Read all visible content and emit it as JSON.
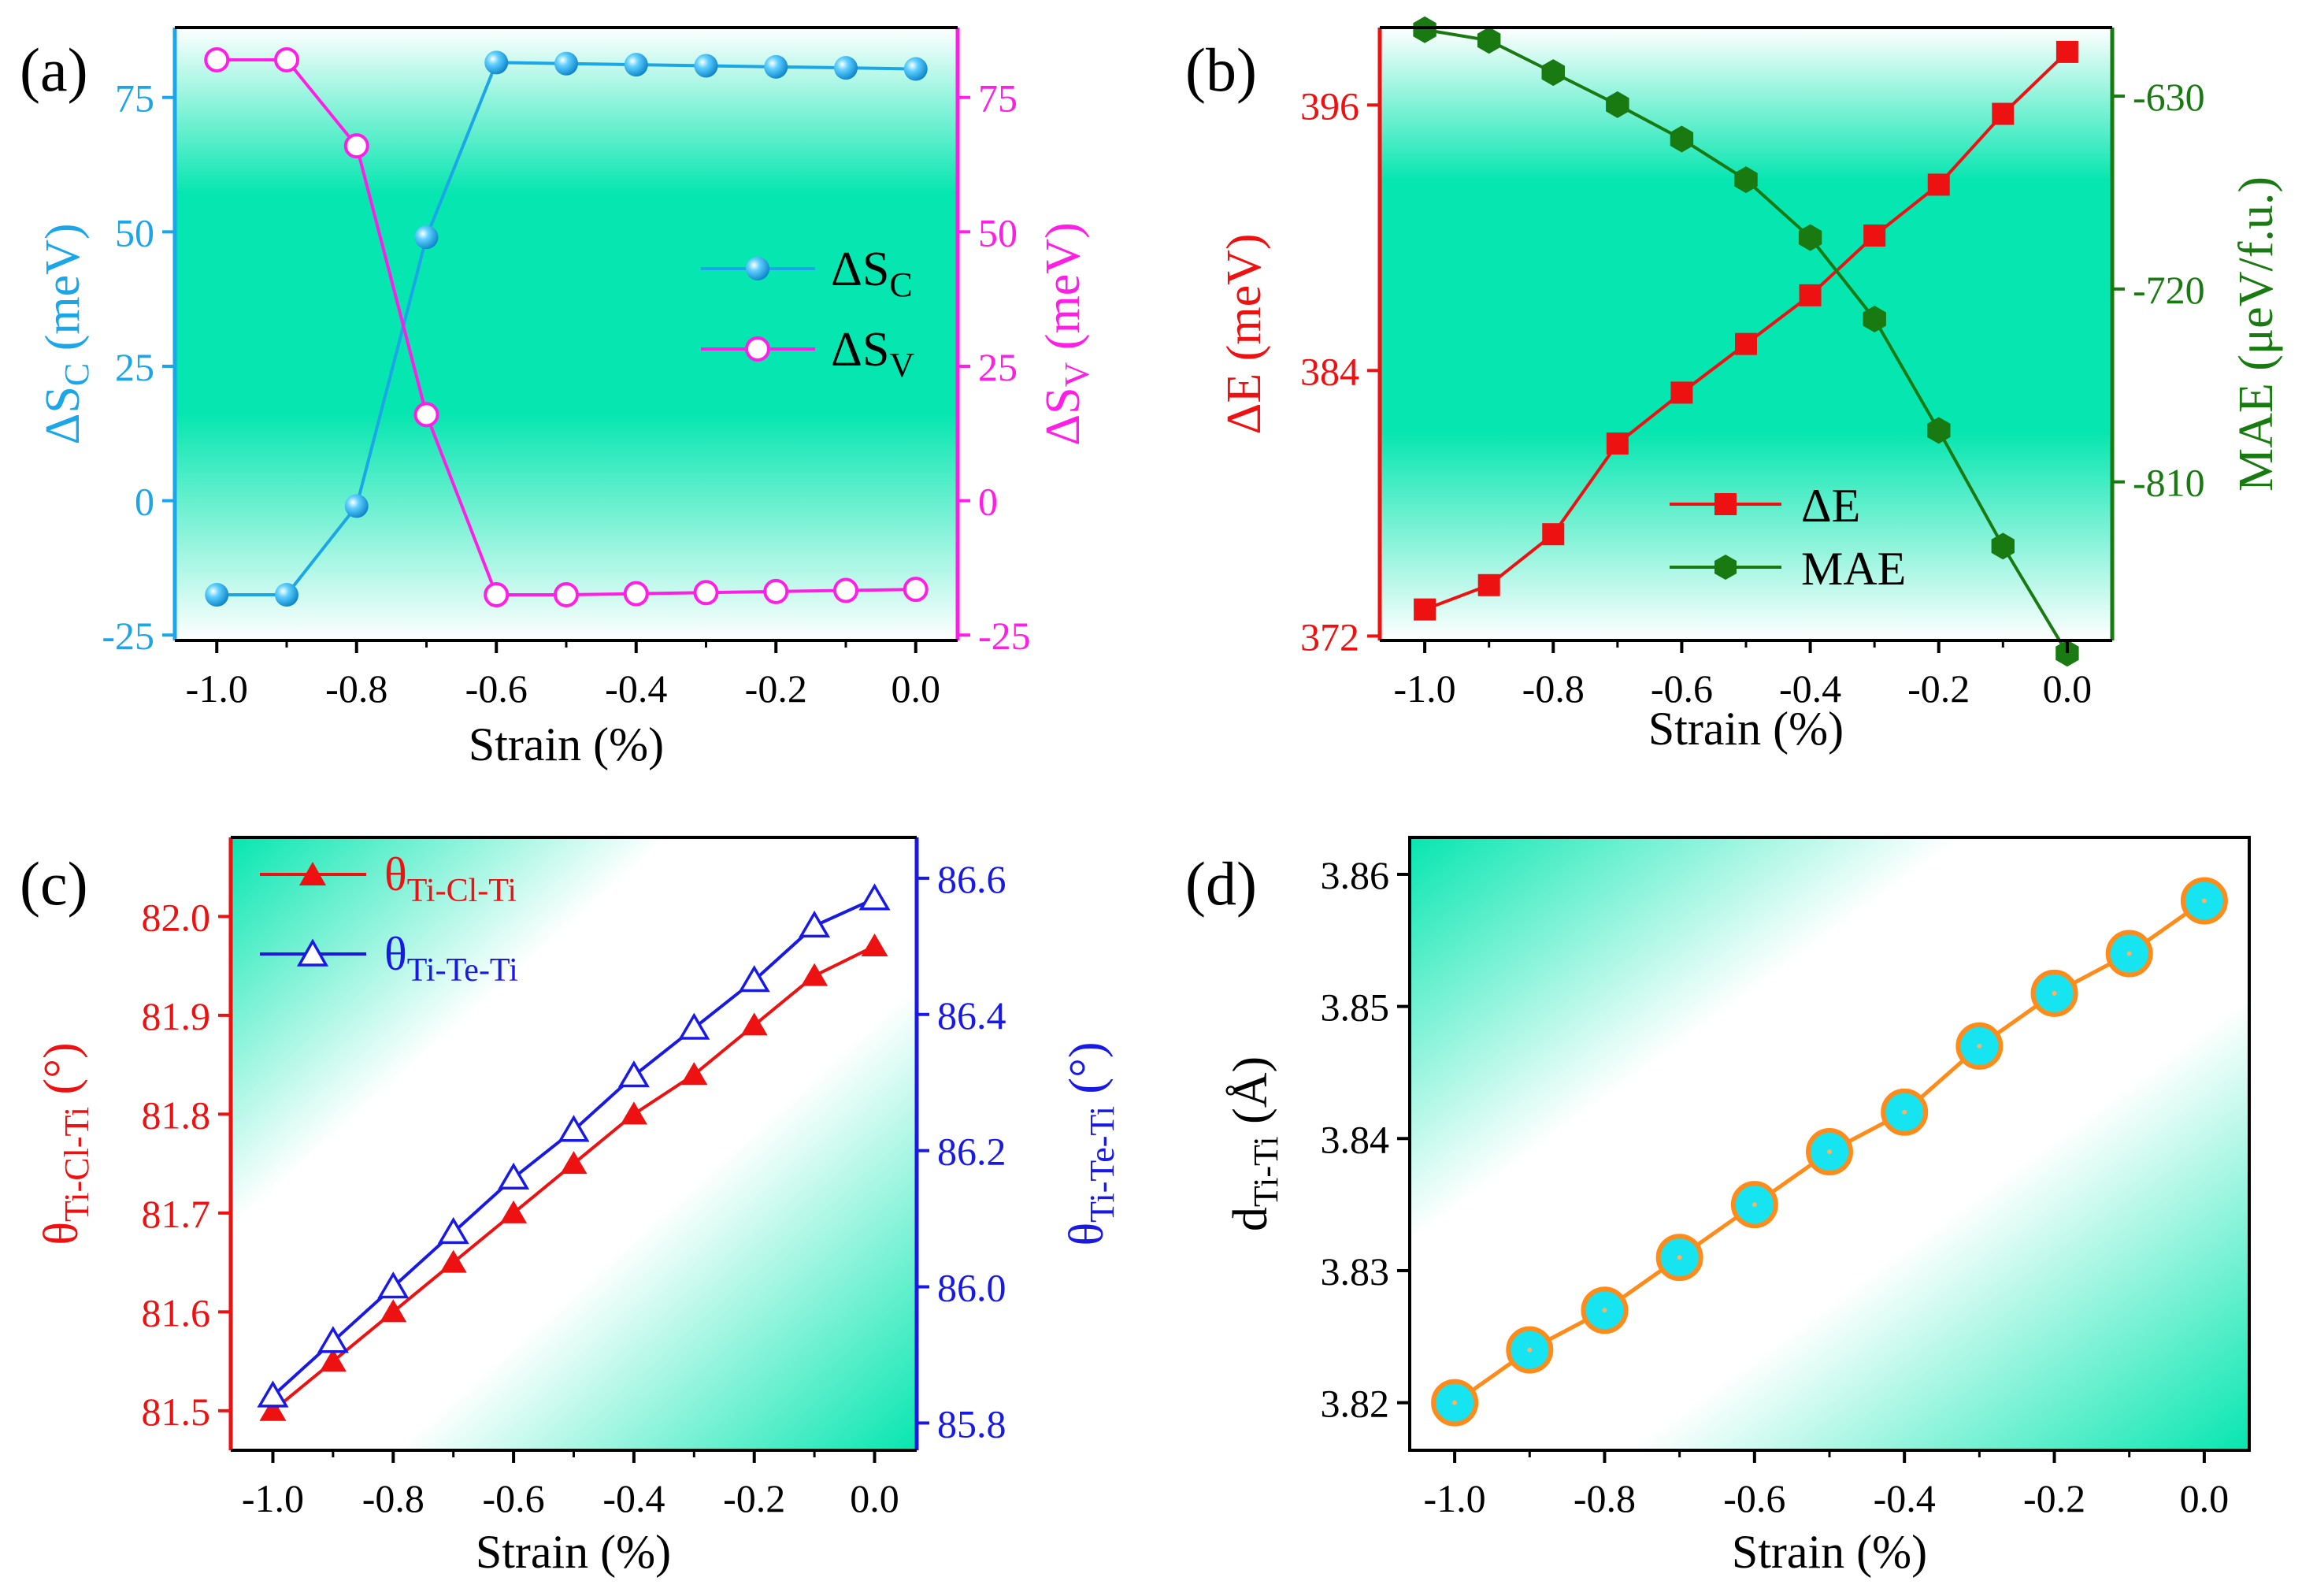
{
  "figure": {
    "x_label": "Strain (%)"
  },
  "colors": {
    "cyan_axis": "#1aa6e8",
    "magenta": "#ff1ee6",
    "red": "#ee1111",
    "green": "#1a7a12",
    "blue": "#1919e6",
    "orange": "#ff8c1a",
    "marker_cyan": "#16e4f0",
    "teal": "#06e6b0"
  },
  "chart_data": [
    {
      "panel": "(a)",
      "type": "line",
      "x": [
        -1.0,
        -0.9,
        -0.8,
        -0.7,
        -0.6,
        -0.5,
        -0.4,
        -0.3,
        -0.2,
        -0.1,
        0.0
      ],
      "xlim": [
        -1.06,
        0.06
      ],
      "x_ticks": [
        "-1.0",
        "-0.8",
        "-0.6",
        "-0.4",
        "-0.2",
        "0.0"
      ],
      "xlabel": "Strain (%)",
      "ylim_left": [
        -26,
        88
      ],
      "ylim_right": [
        -26,
        88
      ],
      "y_ticks_left": [
        "-25",
        "0",
        "25",
        "50",
        "75"
      ],
      "y_ticks_right": [
        "-25",
        "0",
        "25",
        "50",
        "75"
      ],
      "ylabel_left": "ΔS_C (meV)",
      "ylabel_right": "ΔS_V (meV)",
      "series": [
        {
          "name": "ΔS_C",
          "legend_main": "ΔS",
          "legend_sub": "C",
          "axis": "left",
          "marker": "filled-sphere",
          "color": "#1aa6e8",
          "values": [
            -17.5,
            -17.5,
            -1,
            49,
            81.5,
            81.3,
            81.1,
            80.9,
            80.7,
            80.5,
            80.3
          ]
        },
        {
          "name": "ΔS_V",
          "legend_main": "ΔS",
          "legend_sub": "V",
          "axis": "right",
          "marker": "open-circle",
          "color": "#ff1ee6",
          "values": [
            82,
            82,
            66,
            16,
            -17.5,
            -17.5,
            -17.3,
            -17.1,
            -16.9,
            -16.7,
            -16.5
          ]
        }
      ]
    },
    {
      "panel": "(b)",
      "type": "line",
      "x": [
        -1.0,
        -0.9,
        -0.8,
        -0.7,
        -0.6,
        -0.5,
        -0.4,
        -0.3,
        -0.2,
        -0.1,
        0.0
      ],
      "xlim": [
        -1.07,
        0.07
      ],
      "x_ticks": [
        "-1.0",
        "-0.8",
        "-0.6",
        "-0.4",
        "-0.2",
        "0.0"
      ],
      "xlabel": "Strain (%)",
      "ylim_left": [
        371.8,
        399.5
      ],
      "ylim_right": [
        -884,
        -598
      ],
      "y_ticks_left": [
        "372",
        "384",
        "396"
      ],
      "y_ticks_right": [
        "-630",
        "-720",
        "-810"
      ],
      "ylabel_left": "ΔE (meV)",
      "ylabel_right": "MAE (μeV/f.u.)",
      "series": [
        {
          "name": "ΔE",
          "legend_main": "ΔE",
          "axis": "left",
          "marker": "square",
          "color": "#ee1111",
          "values": [
            373.2,
            374.3,
            376.6,
            380.7,
            383.0,
            385.2,
            387.4,
            390.1,
            392.4,
            395.6,
            398.4
          ]
        },
        {
          "name": "MAE",
          "legend_main": "MAE",
          "axis": "right",
          "marker": "hexagon",
          "color": "#1a7a12",
          "values": [
            -599,
            -604,
            -619,
            -634,
            -650,
            -669,
            -696,
            -734,
            -786,
            -840,
            -890
          ]
        }
      ]
    },
    {
      "panel": "(c)",
      "type": "line",
      "x": [
        -1.0,
        -0.9,
        -0.8,
        -0.7,
        -0.6,
        -0.5,
        -0.4,
        -0.3,
        -0.2,
        -0.1,
        0.0
      ],
      "xlim": [
        -1.07,
        0.07
      ],
      "x_ticks": [
        "-1.0",
        "-0.8",
        "-0.6",
        "-0.4",
        "-0.2",
        "0.0"
      ],
      "xlabel": "Strain (%)",
      "ylim_left": [
        81.46,
        82.08
      ],
      "ylim_right": [
        85.76,
        86.66
      ],
      "y_ticks_left": [
        "81.5",
        "81.6",
        "81.7",
        "81.8",
        "81.9",
        "82.0"
      ],
      "y_ticks_right": [
        "85.8",
        "86.0",
        "86.2",
        "86.4",
        "86.6"
      ],
      "ylabel_left": "θ_Ti-Cl-Ti (°)",
      "ylabel_right": "θ_Ti-Te-Ti (°)",
      "series": [
        {
          "name": "θ_Ti-Cl-Ti",
          "legend_main": "θ",
          "legend_sub": "Ti-Cl-Ti",
          "axis": "left",
          "marker": "filled-triangle",
          "color": "#ee1111",
          "values": [
            81.5,
            81.55,
            81.6,
            81.65,
            81.7,
            81.75,
            81.8,
            81.84,
            81.89,
            81.94,
            81.97
          ]
        },
        {
          "name": "θ_Ti-Te-Ti",
          "legend_main": "θ",
          "legend_sub": "Ti-Te-Ti",
          "axis": "right",
          "marker": "open-triangle",
          "color": "#1919e6",
          "values": [
            85.84,
            85.92,
            86.0,
            86.08,
            86.16,
            86.23,
            86.31,
            86.38,
            86.45,
            86.53,
            86.57
          ]
        }
      ]
    },
    {
      "panel": "(d)",
      "type": "line",
      "x": [
        -1.0,
        -0.9,
        -0.8,
        -0.7,
        -0.6,
        -0.5,
        -0.4,
        -0.3,
        -0.2,
        -0.1,
        0.0
      ],
      "xlim": [
        -1.06,
        0.06
      ],
      "x_ticks": [
        "-1.0",
        "-0.8",
        "-0.6",
        "-0.4",
        "-0.2",
        "0.0"
      ],
      "xlabel": "Strain (%)",
      "ylim_left": [
        3.8164,
        3.8628
      ],
      "y_ticks_left": [
        "3.82",
        "3.83",
        "3.84",
        "3.85",
        "3.86"
      ],
      "ylabel_left": "d_Ti-Ti (Å)",
      "series": [
        {
          "name": "d_Ti-Ti",
          "axis": "left",
          "marker": "big-circle",
          "color": "#ff8c1a",
          "values": [
            3.82,
            3.824,
            3.827,
            3.831,
            3.835,
            3.839,
            3.842,
            3.847,
            3.851,
            3.854,
            3.858
          ]
        }
      ]
    }
  ]
}
